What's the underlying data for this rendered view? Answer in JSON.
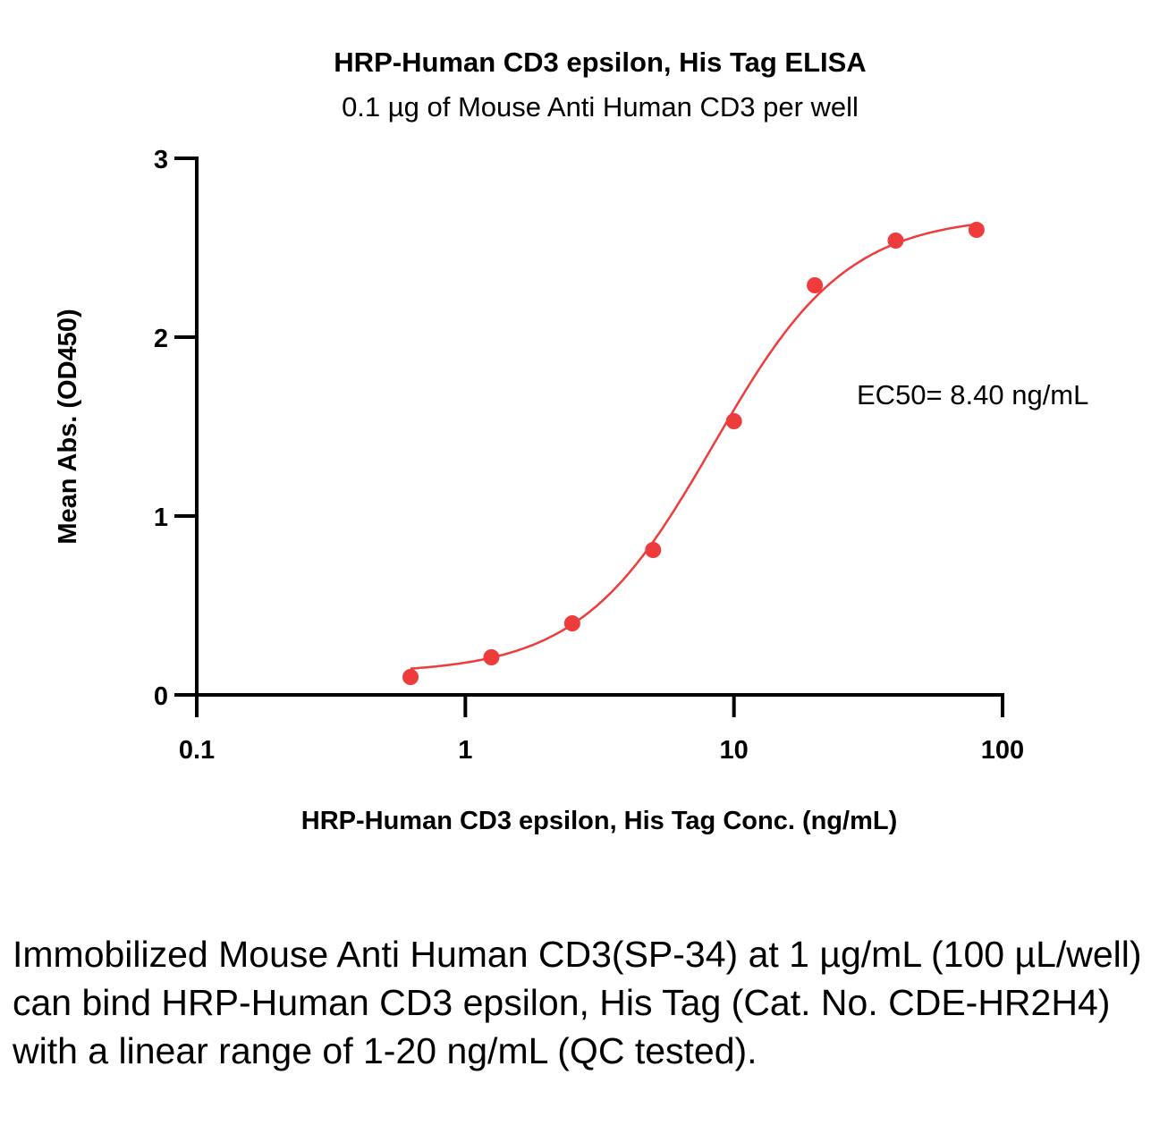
{
  "chart_data": {
    "type": "scatter",
    "title": "HRP-Human CD3 epsilon, His Tag ELISA",
    "subtitle": "0.1 µg of Mouse Anti Human CD3 per well",
    "xlabel": "HRP-Human CD3 epsilon, His Tag Conc. (ng/mL)",
    "ylabel": "Mean Abs. (OD450)",
    "x_scale": "log",
    "xlim": [
      0.1,
      100
    ],
    "ylim": [
      0,
      3
    ],
    "x_ticks": [
      0.1,
      1,
      10,
      100
    ],
    "x_tick_labels": [
      "0.1",
      "1",
      "10",
      "100"
    ],
    "y_ticks": [
      0,
      1,
      2,
      3
    ],
    "y_tick_labels": [
      "0",
      "1",
      "2",
      "3"
    ],
    "grid": false,
    "annotation": "EC50= 8.40 ng/mL",
    "series": [
      {
        "x": [
          0.625,
          1.25,
          2.5,
          5,
          10,
          20,
          40,
          80
        ],
        "y": [
          0.1,
          0.21,
          0.4,
          0.81,
          1.53,
          2.29,
          2.54,
          2.6
        ],
        "color": "#ee3b3b",
        "fit": "4PL"
      }
    ]
  },
  "caption": "Immobilized Mouse Anti Human CD3(SP-34) at 1 µg/mL (100 µL/well) can bind HRP-Human CD3 epsilon, His Tag (Cat. No. CDE-HR2H4) with a linear range of 1-20 ng/mL (QC tested)."
}
